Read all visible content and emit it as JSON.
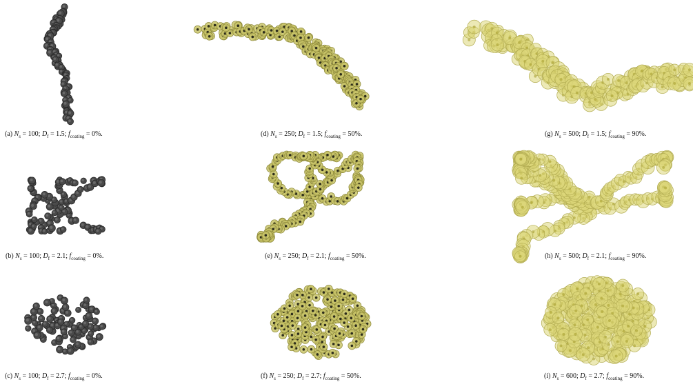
{
  "panels": [
    {
      "caption": [
        {
          "t": "(a) "
        },
        {
          "t": "N",
          "s": "i"
        },
        {
          "t": "s",
          "s": "sub"
        },
        {
          "t": " = 100; "
        },
        {
          "t": "D",
          "s": "i"
        },
        {
          "t": "f",
          "s": "sub"
        },
        {
          "t": " = 1.5; "
        },
        {
          "t": "f",
          "s": "i"
        },
        {
          "t": "coating",
          "s": "sub"
        },
        {
          "t": " = 0%."
        }
      ]
    },
    {
      "caption": [
        {
          "t": "(b) "
        },
        {
          "t": "N",
          "s": "i"
        },
        {
          "t": "s",
          "s": "sub"
        },
        {
          "t": " = 100; "
        },
        {
          "t": "D",
          "s": "i"
        },
        {
          "t": "f",
          "s": "sub"
        },
        {
          "t": " = 2.1; "
        },
        {
          "t": "f",
          "s": "i"
        },
        {
          "t": "coating",
          "s": "sub"
        },
        {
          "t": " = 0%."
        }
      ]
    },
    {
      "caption": [
        {
          "t": "(c) "
        },
        {
          "t": "N",
          "s": "i"
        },
        {
          "t": "s",
          "s": "sub"
        },
        {
          "t": " = 100; "
        },
        {
          "t": "D",
          "s": "i"
        },
        {
          "t": "f",
          "s": "sub"
        },
        {
          "t": " = 2.7; "
        },
        {
          "t": "f",
          "s": "i"
        },
        {
          "t": "coating",
          "s": "sub"
        },
        {
          "t": " = 0%."
        }
      ]
    },
    {
      "caption": [
        {
          "t": "(d) "
        },
        {
          "t": "N",
          "s": "i"
        },
        {
          "t": "s",
          "s": "sub"
        },
        {
          "t": " = 250; "
        },
        {
          "t": "D",
          "s": "i"
        },
        {
          "t": "f",
          "s": "sub"
        },
        {
          "t": " = 1.5; "
        },
        {
          "t": "f",
          "s": "i"
        },
        {
          "t": "coating",
          "s": "sub"
        },
        {
          "t": " = 50%."
        }
      ]
    },
    {
      "caption": [
        {
          "t": "(e) "
        },
        {
          "t": "N",
          "s": "i"
        },
        {
          "t": "s",
          "s": "sub"
        },
        {
          "t": " = 250; "
        },
        {
          "t": "D",
          "s": "i"
        },
        {
          "t": "f",
          "s": "sub"
        },
        {
          "t": " = 2.1; "
        },
        {
          "t": "f",
          "s": "i"
        },
        {
          "t": "coating",
          "s": "sub"
        },
        {
          "t": " = 50%."
        }
      ]
    },
    {
      "caption": [
        {
          "t": "(f) "
        },
        {
          "t": "N",
          "s": "i"
        },
        {
          "t": "s",
          "s": "sub"
        },
        {
          "t": " = 250; "
        },
        {
          "t": "D",
          "s": "i"
        },
        {
          "t": "f",
          "s": "sub"
        },
        {
          "t": " = 2.7; "
        },
        {
          "t": "f",
          "s": "i"
        },
        {
          "t": "coating",
          "s": "sub"
        },
        {
          "t": " = 50%."
        }
      ]
    },
    {
      "caption": [
        {
          "t": "(g) "
        },
        {
          "t": "N",
          "s": "i"
        },
        {
          "t": "s",
          "s": "sub"
        },
        {
          "t": " = 500; "
        },
        {
          "t": "D",
          "s": "i"
        },
        {
          "t": "f",
          "s": "sub"
        },
        {
          "t": " = 1.5; "
        },
        {
          "t": "f",
          "s": "i"
        },
        {
          "t": "coating",
          "s": "sub"
        },
        {
          "t": " = 90%."
        }
      ]
    },
    {
      "caption": [
        {
          "t": "(h) "
        },
        {
          "t": "N",
          "s": "i"
        },
        {
          "t": "s",
          "s": "sub"
        },
        {
          "t": " = 500; "
        },
        {
          "t": "D",
          "s": "i"
        },
        {
          "t": "f",
          "s": "sub"
        },
        {
          "t": " = 2.1; "
        },
        {
          "t": "f",
          "s": "i"
        },
        {
          "t": "coating",
          "s": "sub"
        },
        {
          "t": " = 90%."
        }
      ]
    },
    {
      "caption": [
        {
          "t": "(i) "
        },
        {
          "t": "N",
          "s": "i"
        },
        {
          "t": "s",
          "s": "sub"
        },
        {
          "t": " = 600; "
        },
        {
          "t": "D",
          "s": "i"
        },
        {
          "t": "f",
          "s": "sub"
        },
        {
          "t": " = 2.7; "
        },
        {
          "t": "f",
          "s": "i"
        },
        {
          "t": "coating",
          "s": "sub"
        },
        {
          "t": " = 90%."
        }
      ]
    }
  ]
}
